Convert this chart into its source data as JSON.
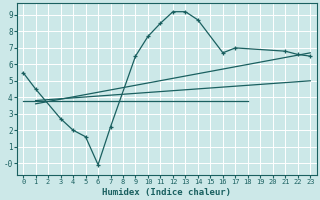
{
  "xlabel": "Humidex (Indice chaleur)",
  "bg_color": "#cce8e8",
  "line_color": "#1a6060",
  "grid_color": "#b0d0d0",
  "xlim": [
    -0.5,
    23.5
  ],
  "ylim": [
    -0.7,
    9.7
  ],
  "xticks": [
    0,
    1,
    2,
    3,
    4,
    5,
    6,
    7,
    8,
    9,
    10,
    11,
    12,
    13,
    14,
    15,
    16,
    17,
    18,
    19,
    20,
    21,
    22,
    23
  ],
  "yticks": [
    0,
    1,
    2,
    3,
    4,
    5,
    6,
    7,
    8,
    9
  ],
  "line1_x": [
    0,
    1,
    3,
    4,
    5,
    6,
    7,
    9,
    10,
    11,
    12,
    13,
    14,
    16,
    17,
    21,
    22,
    23
  ],
  "line1_y": [
    5.5,
    4.5,
    2.7,
    2.0,
    1.6,
    -0.1,
    2.2,
    6.5,
    7.7,
    8.5,
    9.2,
    9.2,
    8.7,
    6.7,
    7.0,
    6.8,
    6.6,
    6.5
  ],
  "line2_x": [
    0,
    18
  ],
  "line2_y": [
    3.8,
    3.8
  ],
  "line3_x": [
    1,
    23
  ],
  "line3_y": [
    3.8,
    5.0
  ],
  "line4_x": [
    1,
    23
  ],
  "line4_y": [
    3.6,
    6.7
  ]
}
